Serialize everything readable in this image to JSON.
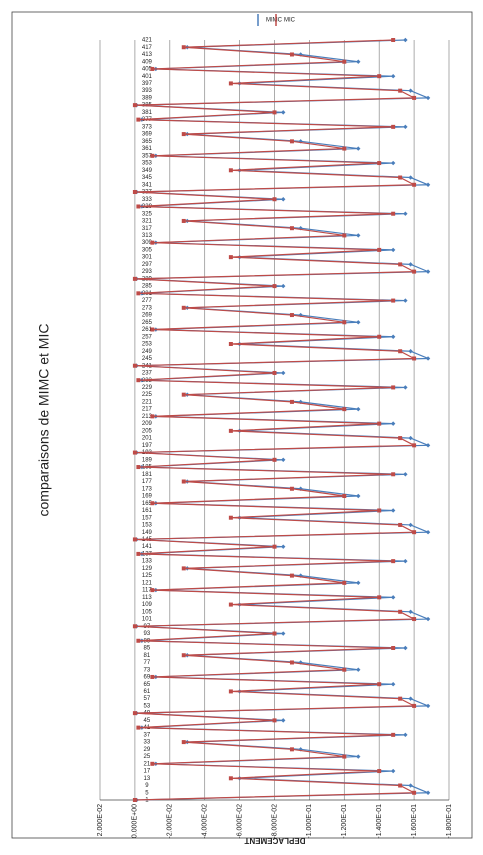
{
  "chart_data": {
    "type": "line",
    "title": "comparaisons de MIMC et MIC",
    "ylabel": "DEPLACEMENT",
    "categories": [
      1,
      5,
      9,
      13,
      17,
      21,
      25,
      29,
      33,
      37,
      41,
      45,
      49,
      53,
      57,
      61,
      65,
      69,
      73,
      77,
      81,
      85,
      89,
      93,
      97,
      101,
      105,
      109,
      113,
      117,
      121,
      125,
      129,
      133,
      137,
      141,
      145,
      149,
      153,
      157,
      161,
      165,
      169,
      173,
      177,
      181,
      185,
      189,
      193,
      197,
      201,
      205,
      209,
      213,
      217,
      221,
      225,
      229,
      233,
      237,
      241,
      245,
      249,
      253,
      257,
      261,
      265,
      269,
      273,
      277,
      281,
      285,
      289,
      293,
      297,
      301,
      305,
      309,
      313,
      317,
      321,
      325,
      329,
      333,
      337,
      341,
      345,
      349,
      353,
      357,
      361,
      365,
      369,
      373,
      377,
      381,
      385,
      389,
      393,
      397,
      401,
      405,
      409,
      413,
      417,
      421
    ],
    "series": [
      {
        "name": "MIMC",
        "color": "#4a7ebb",
        "values": [
          -0.001,
          -0.168,
          -0.158,
          -0.06,
          -0.148,
          -0.012,
          -0.128,
          -0.095,
          -0.03,
          -0.155,
          -0.004,
          -0.085,
          -0.001,
          -0.168,
          -0.158,
          -0.06,
          -0.148,
          -0.012,
          -0.128,
          -0.095,
          -0.03,
          -0.155,
          -0.004,
          -0.085,
          -0.001,
          -0.168,
          -0.158,
          -0.06,
          -0.148,
          -0.012,
          -0.128,
          -0.095,
          -0.03,
          -0.155,
          -0.004,
          -0.085,
          -0.001,
          -0.168,
          -0.158,
          -0.06,
          -0.148,
          -0.012,
          -0.128,
          -0.095,
          -0.03,
          -0.155,
          -0.004,
          -0.085,
          -0.001,
          -0.168,
          -0.158,
          -0.06,
          -0.148,
          -0.012,
          -0.128,
          -0.095,
          -0.03,
          -0.155,
          -0.004,
          -0.085,
          -0.001,
          -0.168,
          -0.158,
          -0.06,
          -0.148,
          -0.012,
          -0.128,
          -0.095,
          -0.03,
          -0.155,
          -0.004,
          -0.085,
          -0.001,
          -0.168,
          -0.158,
          -0.06,
          -0.148,
          -0.012,
          -0.128,
          -0.095,
          -0.03,
          -0.155,
          -0.004,
          -0.085,
          -0.001,
          -0.168,
          -0.158,
          -0.06,
          -0.148,
          -0.012,
          -0.128,
          -0.095,
          -0.03,
          -0.155,
          -0.004,
          -0.085,
          -0.001,
          -0.168,
          -0.158,
          -0.06,
          -0.148,
          -0.012,
          -0.128,
          -0.095,
          -0.03,
          -0.155
        ]
      },
      {
        "name": "MIC",
        "color": "#be4b48",
        "values": [
          0,
          -0.16,
          -0.152,
          -0.055,
          -0.14,
          -0.01,
          -0.12,
          -0.09,
          -0.028,
          -0.148,
          -0.002,
          -0.08,
          0,
          -0.16,
          -0.152,
          -0.055,
          -0.14,
          -0.01,
          -0.12,
          -0.09,
          -0.028,
          -0.148,
          -0.002,
          -0.08,
          0,
          -0.16,
          -0.152,
          -0.055,
          -0.14,
          -0.01,
          -0.12,
          -0.09,
          -0.028,
          -0.148,
          -0.002,
          -0.08,
          0,
          -0.16,
          -0.152,
          -0.055,
          -0.14,
          -0.01,
          -0.12,
          -0.09,
          -0.028,
          -0.148,
          -0.002,
          -0.08,
          0,
          -0.16,
          -0.152,
          -0.055,
          -0.14,
          -0.01,
          -0.12,
          -0.09,
          -0.028,
          -0.148,
          -0.002,
          -0.08,
          0,
          -0.16,
          -0.152,
          -0.055,
          -0.14,
          -0.01,
          -0.12,
          -0.09,
          -0.028,
          -0.148,
          -0.002,
          -0.08,
          0,
          -0.16,
          -0.152,
          -0.055,
          -0.14,
          -0.01,
          -0.12,
          -0.09,
          -0.028,
          -0.148,
          -0.002,
          -0.08,
          0,
          -0.16,
          -0.152,
          -0.055,
          -0.14,
          -0.01,
          -0.12,
          -0.09,
          -0.028,
          -0.148,
          -0.002,
          -0.08,
          0,
          -0.16,
          -0.152,
          -0.055,
          -0.14,
          -0.01,
          -0.12,
          -0.09,
          -0.028,
          -0.148
        ]
      }
    ],
    "ylim": [
      -0.18,
      0.02
    ],
    "yticks": [
      {
        "value": 0.02,
        "label": "2.000E-02"
      },
      {
        "value": 0,
        "label": "0.000E+00"
      },
      {
        "value": -0.02,
        "label": "-2.000E-02"
      },
      {
        "value": -0.04,
        "label": "-4.000E-02"
      },
      {
        "value": -0.06,
        "label": "-6.000E-02"
      },
      {
        "value": -0.08,
        "label": "-8.000E-02"
      },
      {
        "value": -0.1,
        "label": "-1.000E-01"
      },
      {
        "value": -0.12,
        "label": "-1.200E-01"
      },
      {
        "value": -0.14,
        "label": "-1.400E-01"
      },
      {
        "value": -0.16,
        "label": "-1.600E-01"
      },
      {
        "value": -0.18,
        "label": "-1.800E-01"
      }
    ],
    "grid": true,
    "legend": "right"
  }
}
